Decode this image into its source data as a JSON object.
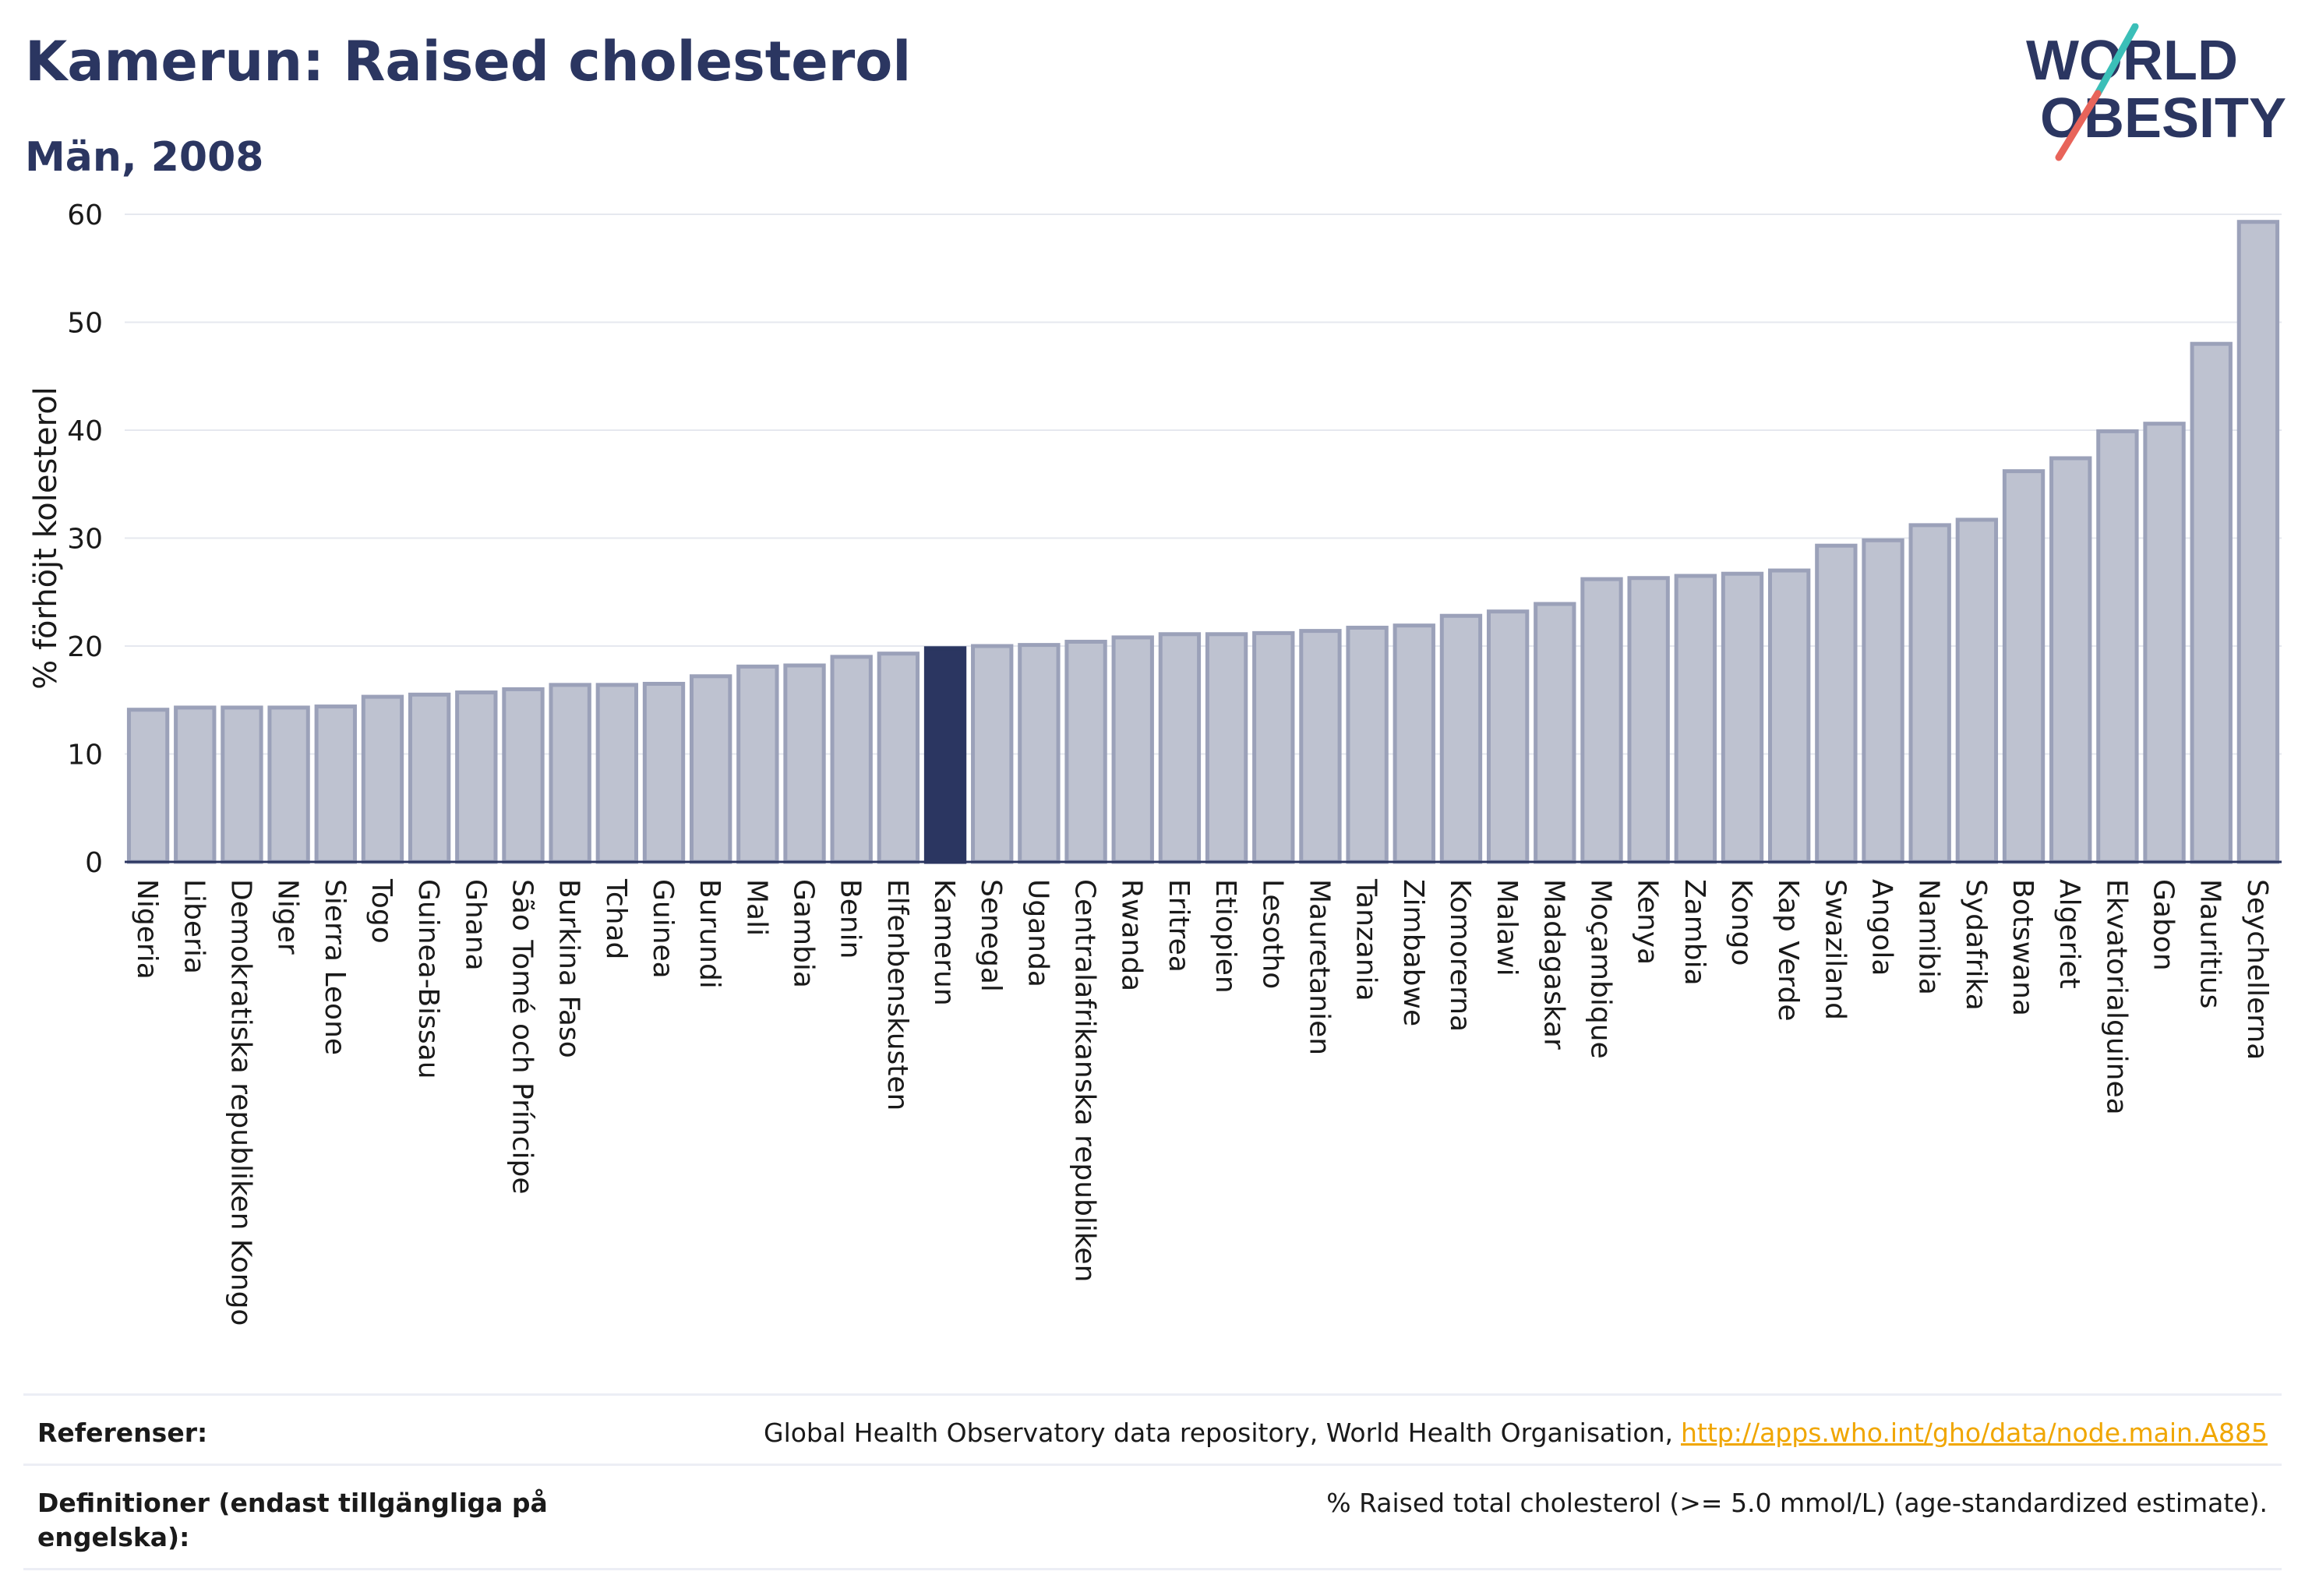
{
  "header": {
    "title": "Kamerun: Raised cholesterol",
    "subtitle": "Män, 2008"
  },
  "logo": {
    "line1": "WORLD",
    "line2": "OBESITY",
    "colors": {
      "text": "#2b3661",
      "slash_red": "#e8645a",
      "slash_teal": "#3bbfb8"
    }
  },
  "chart_data": {
    "type": "bar",
    "ylabel": "% förhöjt kolesterol",
    "ylim": [
      0,
      60
    ],
    "yticks": [
      0,
      10,
      20,
      30,
      40,
      50,
      60
    ],
    "grid": true,
    "highlight": "Kamerun",
    "colors": {
      "bar": "#bec2d0",
      "bar_border": "#9ba1b9",
      "highlight": "#2b3661"
    },
    "categories": [
      "Nigeria",
      "Liberia",
      "Demokratiska republiken Kongo",
      "Niger",
      "Sierra Leone",
      "Togo",
      "Guinea-Bissau",
      "Ghana",
      "São Tomé och Príncipe",
      "Burkina Faso",
      "Tchad",
      "Guinea",
      "Burundi",
      "Mali",
      "Gambia",
      "Benin",
      "Elfenbenskusten",
      "Kamerun",
      "Senegal",
      "Uganda",
      "Centralafrikanska republiken",
      "Rwanda",
      "Eritrea",
      "Etiopien",
      "Lesotho",
      "Mauretanien",
      "Tanzania",
      "Zimbabwe",
      "Komorerna",
      "Malawi",
      "Madagaskar",
      "Moçambique",
      "Kenya",
      "Zambia",
      "Kongo",
      "Kap Verde",
      "Swaziland",
      "Angola",
      "Namibia",
      "Sydafrika",
      "Botswana",
      "Algeriet",
      "Ekvatorialguinea",
      "Gabon",
      "Mauritius",
      "Seychellerna"
    ],
    "values": [
      14.1,
      14.3,
      14.3,
      14.3,
      14.4,
      15.3,
      15.5,
      15.7,
      16.0,
      16.4,
      16.4,
      16.5,
      17.2,
      18.1,
      18.2,
      19.0,
      19.3,
      19.8,
      20.0,
      20.1,
      20.4,
      20.8,
      21.1,
      21.1,
      21.2,
      21.4,
      21.7,
      21.9,
      22.8,
      23.2,
      23.9,
      26.2,
      26.3,
      26.5,
      26.7,
      27.0,
      29.3,
      29.8,
      31.2,
      31.7,
      36.2,
      37.4,
      39.9,
      40.6,
      48.0,
      59.3
    ]
  },
  "references": {
    "ref_label": "Referenser:",
    "ref_text": "Global Health Observatory data repository, World Health Organisation,",
    "ref_link": "http://apps.who.int/gho/data/node.main.A885",
    "def_label": "Definitioner (endast tillgängliga på engelska):",
    "def_text": "% Raised total cholesterol (>= 5.0 mmol/L) (age-standardized estimate)."
  }
}
